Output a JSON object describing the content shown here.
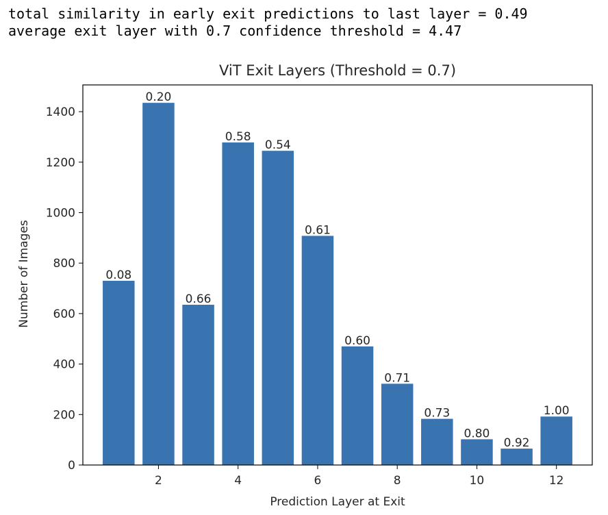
{
  "console": {
    "line1": "total similarity in early exit predictions to last layer = 0.49",
    "line2": "average exit layer with 0.7 confidence threshold = 4.47"
  },
  "chart_data": {
    "type": "bar",
    "title": "ViT Exit Layers (Threshold = 0.7)",
    "xlabel": "Prediction Layer at Exit",
    "ylabel": "Number of Images",
    "x": [
      1,
      2,
      3,
      4,
      5,
      6,
      7,
      8,
      9,
      10,
      11,
      12
    ],
    "values": [
      730,
      1435,
      635,
      1278,
      1245,
      908,
      470,
      322,
      183,
      102,
      65,
      192
    ],
    "bar_labels": [
      "0.08",
      "0.20",
      "0.66",
      "0.58",
      "0.54",
      "0.61",
      "0.60",
      "0.71",
      "0.73",
      "0.80",
      "0.92",
      "1.00"
    ],
    "xticks": [
      2,
      4,
      6,
      8,
      10,
      12
    ],
    "yticks": [
      0,
      200,
      400,
      600,
      800,
      1000,
      1200,
      1400
    ],
    "xlim": [
      0.1,
      12.9
    ],
    "ylim": [
      0,
      1506
    ],
    "bar_color": "#3a74b0",
    "grid": false,
    "legend": "none"
  }
}
